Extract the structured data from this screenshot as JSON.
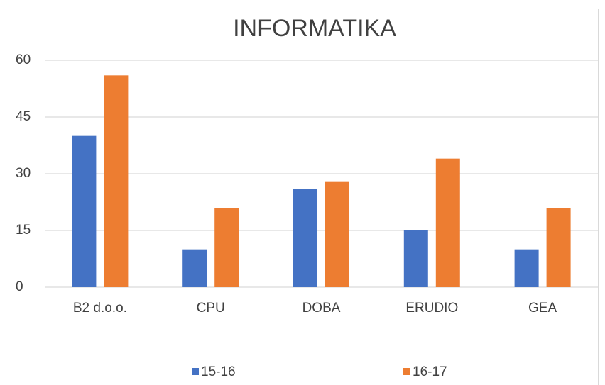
{
  "chart_data": {
    "type": "bar",
    "title": "INFORMATIKA",
    "categories": [
      "B2 d.o.o.",
      "CPU",
      "DOBA",
      "ERUDIO",
      "GEA"
    ],
    "series": [
      {
        "name": "15-16",
        "color": "#4472c4",
        "values": [
          40,
          10,
          26,
          15,
          10
        ]
      },
      {
        "name": "16-17",
        "color": "#ed7d31",
        "values": [
          56,
          21,
          28,
          34,
          21
        ]
      }
    ],
    "ylim": [
      0,
      60
    ],
    "yticks": [
      0,
      15,
      30,
      45,
      60
    ],
    "grid": true,
    "legend": "bottom"
  }
}
